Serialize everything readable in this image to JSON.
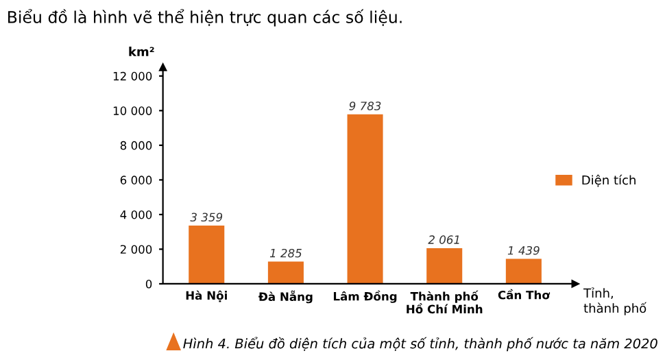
{
  "chart_data": {
    "type": "bar",
    "categories": [
      "Hà Nội",
      "Đà Nẵng",
      "Lâm Đồng",
      "Thành phố\nHồ Chí Minh",
      "Cần Thơ"
    ],
    "series": [
      {
        "name": "Diện tích",
        "color": "#e8721f",
        "values": [
          3359,
          1285,
          9783,
          2061,
          1439
        ]
      }
    ],
    "value_labels": [
      "3 359",
      "1 285",
      "9 783",
      "2 061",
      "1 439"
    ],
    "ylabel": "km²",
    "xlabel": "Tỉnh,\nthành phố",
    "ylim": [
      0,
      12500
    ],
    "yticks": [
      0,
      {
        "value": 2000,
        "label": "2 000"
      },
      {
        "value": 4000,
        "label": "4 000"
      },
      {
        "value": 6000,
        "label": "6 000"
      },
      {
        "value": 8000,
        "label": "8 000"
      },
      {
        "value": 10000,
        "label": "10 000"
      },
      {
        "value": 12000,
        "label": "12 000"
      }
    ],
    "grid": false,
    "legend": "right",
    "subtitle": "Biểu đồ là hình vẽ thể hiện trực quan các số liệu.",
    "annotations": [
      "Hình 4. Biểu đồ diện tích của một số tỉnh, thành phố nước ta năm 2020"
    ]
  }
}
